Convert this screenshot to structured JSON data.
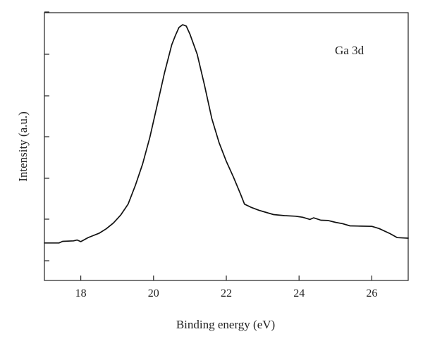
{
  "chart_data": {
    "type": "line",
    "title": "",
    "xlabel": "Binding energy (eV)",
    "ylabel": "Intensity (a.u.)",
    "xlim": [
      17,
      27
    ],
    "ylim": [
      0,
      1
    ],
    "xticks": [
      18,
      20,
      22,
      24,
      26
    ],
    "xtick_labels": [
      "18",
      "20",
      "22",
      "24",
      "26"
    ],
    "yticks_labeled": false,
    "grid": false,
    "annotation": "Ga 3d",
    "series": [
      {
        "color": "#111111",
        "points": [
          [
            17.0,
            0.14
          ],
          [
            17.2,
            0.14
          ],
          [
            17.4,
            0.14
          ],
          [
            17.5,
            0.146
          ],
          [
            17.8,
            0.148
          ],
          [
            17.9,
            0.151
          ],
          [
            18.0,
            0.145
          ],
          [
            18.2,
            0.16
          ],
          [
            18.5,
            0.176
          ],
          [
            18.7,
            0.193
          ],
          [
            18.9,
            0.215
          ],
          [
            19.1,
            0.245
          ],
          [
            19.3,
            0.285
          ],
          [
            19.5,
            0.355
          ],
          [
            19.7,
            0.435
          ],
          [
            19.9,
            0.535
          ],
          [
            20.1,
            0.655
          ],
          [
            20.3,
            0.775
          ],
          [
            20.5,
            0.88
          ],
          [
            20.6,
            0.915
          ],
          [
            20.7,
            0.945
          ],
          [
            20.8,
            0.955
          ],
          [
            20.9,
            0.95
          ],
          [
            21.0,
            0.92
          ],
          [
            21.2,
            0.845
          ],
          [
            21.4,
            0.73
          ],
          [
            21.6,
            0.605
          ],
          [
            21.8,
            0.515
          ],
          [
            22.0,
            0.445
          ],
          [
            22.2,
            0.385
          ],
          [
            22.4,
            0.32
          ],
          [
            22.5,
            0.285
          ],
          [
            22.7,
            0.272
          ],
          [
            22.9,
            0.262
          ],
          [
            23.1,
            0.254
          ],
          [
            23.3,
            0.246
          ],
          [
            23.6,
            0.242
          ],
          [
            23.9,
            0.24
          ],
          [
            24.1,
            0.236
          ],
          [
            24.3,
            0.228
          ],
          [
            24.4,
            0.234
          ],
          [
            24.6,
            0.225
          ],
          [
            24.8,
            0.224
          ],
          [
            25.0,
            0.217
          ],
          [
            25.2,
            0.212
          ],
          [
            25.4,
            0.204
          ],
          [
            25.7,
            0.203
          ],
          [
            26.0,
            0.202
          ],
          [
            26.2,
            0.194
          ],
          [
            26.5,
            0.175
          ],
          [
            26.7,
            0.16
          ],
          [
            27.0,
            0.158
          ]
        ]
      }
    ]
  }
}
